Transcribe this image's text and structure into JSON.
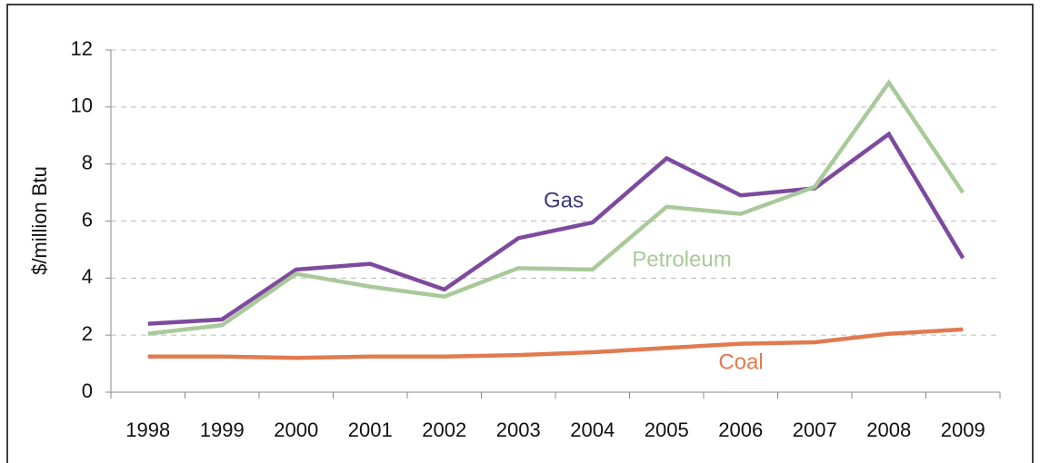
{
  "chart_data": {
    "type": "line",
    "y_label": "$/million Btu",
    "categories": [
      "1998",
      "1999",
      "2000",
      "2001",
      "2002",
      "2003",
      "2004",
      "2005",
      "2006",
      "2007",
      "2008",
      "2009"
    ],
    "series": [
      {
        "name": "Gas",
        "color": "#7d4a9e",
        "values": [
          2.4,
          2.55,
          4.3,
          4.5,
          3.6,
          5.4,
          5.95,
          8.2,
          6.9,
          7.15,
          9.05,
          4.7
        ]
      },
      {
        "name": "Petroleum",
        "color": "#a9c99a",
        "values": [
          2.05,
          2.35,
          4.15,
          3.7,
          3.35,
          4.35,
          4.3,
          6.5,
          6.25,
          7.2,
          10.85,
          7.0
        ]
      },
      {
        "name": "Coal",
        "color": "#e07b4f",
        "values": [
          1.25,
          1.25,
          1.2,
          1.25,
          1.25,
          1.3,
          1.4,
          1.55,
          1.7,
          1.75,
          2.05,
          2.2
        ]
      }
    ],
    "ylim": [
      0,
      12
    ],
    "yticks": [
      0,
      2,
      4,
      6,
      8,
      10,
      12
    ],
    "grid": true
  }
}
